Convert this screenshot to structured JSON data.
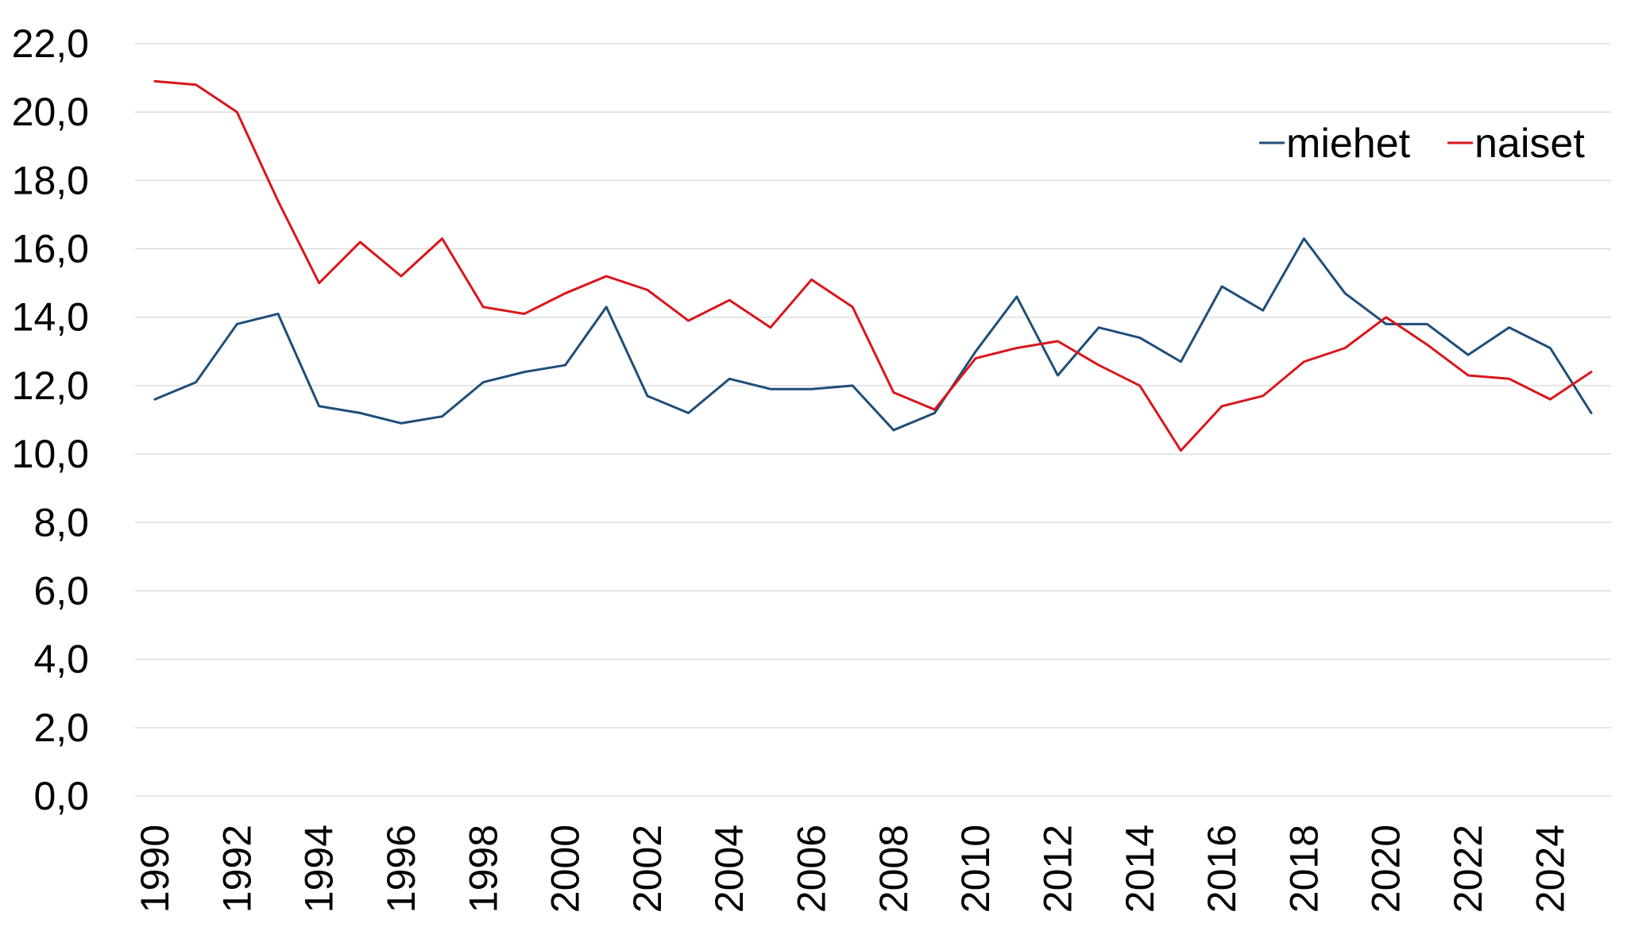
{
  "chart_data": {
    "type": "line",
    "title": "",
    "xlabel": "",
    "ylabel": "",
    "ylim": [
      0,
      22
    ],
    "ytick_step": 2,
    "ytick_labels": [
      "0,0",
      "2,0",
      "4,0",
      "6,0",
      "8,0",
      "10,0",
      "12,0",
      "14,0",
      "16,0",
      "18,0",
      "20,0",
      "22,0"
    ],
    "xtick_labels": [
      "1990",
      "1992",
      "1994",
      "1996",
      "1998",
      "2000",
      "2002",
      "2004",
      "2006",
      "2008",
      "2010",
      "2012",
      "2014",
      "2016",
      "2018",
      "2020",
      "2022",
      "2024"
    ],
    "grid": true,
    "legend_position": "top-right",
    "x": [
      1990,
      1991,
      1992,
      1993,
      1994,
      1995,
      1996,
      1997,
      1998,
      1999,
      2000,
      2001,
      2002,
      2003,
      2004,
      2005,
      2006,
      2007,
      2008,
      2009,
      2010,
      2011,
      2012,
      2013,
      2014,
      2015,
      2016,
      2017,
      2018,
      2019,
      2020,
      2021,
      2022,
      2023,
      2024,
      2025
    ],
    "series": [
      {
        "name": "miehet",
        "color": "#1f4e79",
        "values": [
          11.6,
          12.1,
          13.8,
          14.1,
          11.4,
          11.2,
          10.9,
          11.1,
          12.1,
          12.4,
          12.6,
          14.3,
          11.7,
          11.2,
          12.2,
          11.9,
          11.9,
          12.0,
          10.7,
          11.2,
          13.0,
          14.6,
          12.3,
          13.7,
          13.4,
          12.7,
          14.9,
          14.2,
          16.3,
          14.7,
          13.8,
          13.8,
          12.9,
          13.7,
          13.1,
          11.2
        ]
      },
      {
        "name": "naiset",
        "color": "#d9161c",
        "values": [
          20.9,
          20.8,
          20.0,
          17.4,
          15.0,
          16.2,
          15.2,
          16.3,
          14.3,
          14.1,
          14.7,
          15.2,
          14.8,
          13.9,
          14.5,
          13.7,
          15.1,
          14.3,
          11.8,
          11.3,
          12.8,
          13.1,
          13.3,
          12.6,
          12.0,
          10.1,
          11.4,
          11.7,
          12.7,
          13.1,
          14.0,
          13.2,
          12.3,
          12.2,
          11.6,
          12.4
        ]
      }
    ]
  }
}
